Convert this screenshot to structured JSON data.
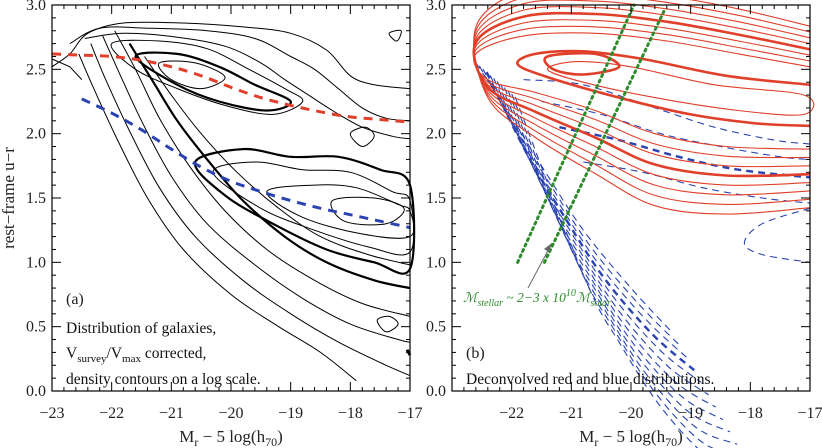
{
  "chart_data": [
    {
      "type": "contour",
      "panel_label": "(a)",
      "xlabel": "M",
      "xlabel_sub": "r",
      "xlabel_rest": " − 5 log(h",
      "xlabel_sub2": "70",
      "xlabel_close": ")",
      "ylabel": "rest−frame u−r",
      "xlim": [
        -23,
        -17
      ],
      "ylim": [
        0.0,
        3.0
      ],
      "xticks": [
        -23,
        -22,
        -21,
        -20,
        -19,
        -18,
        -17
      ],
      "xtick_labels": [
        "−23",
        "−22",
        "−21",
        "−20",
        "−19",
        "−18",
        "−17"
      ],
      "yticks": [
        0.0,
        0.5,
        1.0,
        1.5,
        2.0,
        2.5,
        3.0
      ],
      "ytick_labels": [
        "0.0",
        "0.5",
        "1.0",
        "1.5",
        "2.0",
        "2.5",
        "3.0"
      ],
      "annotation_lines": [
        "Distribution of galaxies,",
        "V",
        "survey",
        "/V",
        "max",
        " corrected,",
        "density contours on a log scale."
      ],
      "series": [
        {
          "name": "red sequence fit",
          "style": "dashed",
          "color": "#e0402a",
          "x": [
            -23.0,
            -22.5,
            -22.0,
            -21.5,
            -21.0,
            -20.5,
            -20.0,
            -19.5,
            -19.0,
            -18.5,
            -18.0,
            -17.5,
            -17.0
          ],
          "y": [
            2.62,
            2.61,
            2.6,
            2.57,
            2.52,
            2.45,
            2.36,
            2.28,
            2.22,
            2.17,
            2.13,
            2.11,
            2.09
          ]
        },
        {
          "name": "blue sequence fit",
          "style": "dashed",
          "color": "#2a43b0",
          "x": [
            -22.5,
            -22.0,
            -21.5,
            -21.0,
            -20.5,
            -20.0,
            -19.5,
            -19.0,
            -18.5,
            -18.0,
            -17.5,
            -17.0
          ],
          "y": [
            2.27,
            2.16,
            2.03,
            1.88,
            1.74,
            1.63,
            1.55,
            1.48,
            1.42,
            1.37,
            1.32,
            1.27
          ]
        }
      ]
    },
    {
      "type": "contour",
      "panel_label": "(b)",
      "xlim": [
        -23,
        -17
      ],
      "ylim": [
        0.0,
        3.0
      ],
      "xticks": [
        -23,
        -22,
        -21,
        -20,
        -19,
        -18,
        -17
      ],
      "yticks": [
        0.0,
        0.5,
        1.0,
        1.5,
        2.0,
        2.5,
        3.0
      ],
      "caption": "Deconvolved red and blue distributions.",
      "mass_label": {
        "m": "ℳ",
        "stellar": "stellar",
        "approx": " ~ 2−3 x 10",
        "exp": "10",
        "solar": "solar"
      },
      "series": [
        {
          "name": "red distribution contours",
          "style": "solid",
          "color": "#e0402a"
        },
        {
          "name": "blue distribution contours",
          "style": "dashed",
          "color": "#2a43b0"
        },
        {
          "name": "stellar mass lines",
          "style": "dotted",
          "color": "#2e8b2e",
          "lines": [
            {
              "x": [
                -21.9,
                -19.95
              ],
              "y": [
                1.0,
                3.0
              ]
            },
            {
              "x": [
                -21.45,
                -19.45
              ],
              "y": [
                1.0,
                2.95
              ]
            }
          ]
        }
      ]
    }
  ]
}
